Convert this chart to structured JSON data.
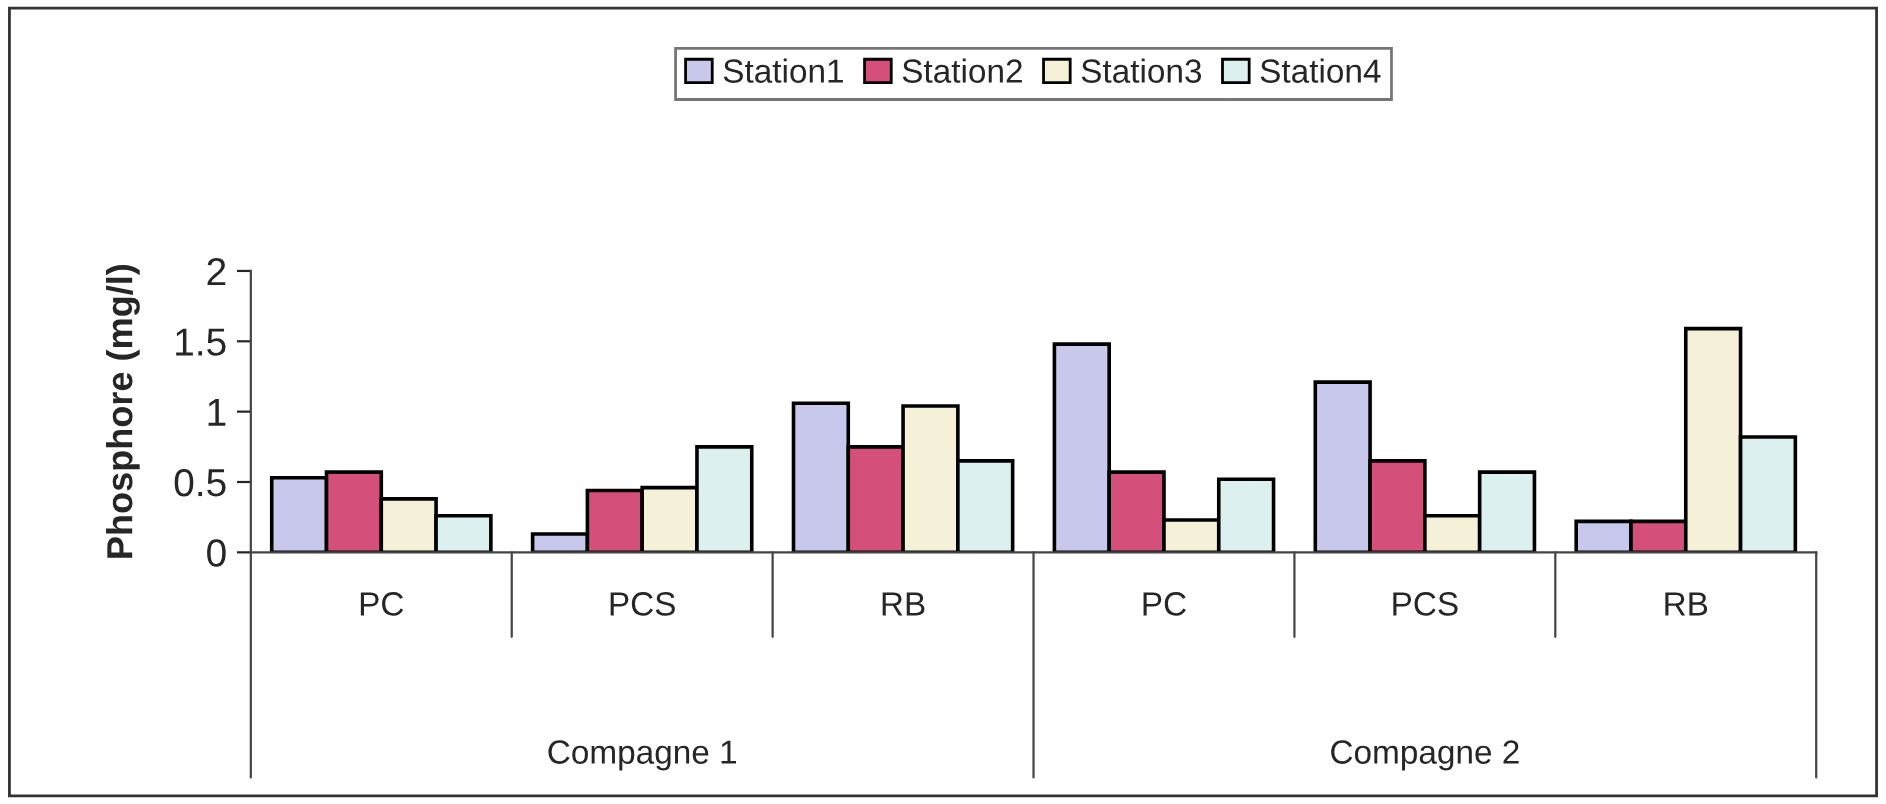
{
  "chart_data": {
    "type": "bar",
    "ylabel": "Phosphore (mg/l)",
    "categories": [
      "PC",
      "PCS",
      "RB",
      "PC",
      "PCS",
      "RB"
    ],
    "series": [
      {
        "name": "Station1",
        "color": "#c8c8ec",
        "values": [
          0.53,
          0.13,
          1.06,
          1.48,
          1.21,
          0.22
        ]
      },
      {
        "name": "Station2",
        "color": "#d4507a",
        "values": [
          0.57,
          0.44,
          0.75,
          0.57,
          0.65,
          0.22
        ]
      },
      {
        "name": "Station3",
        "color": "#f5f0d8",
        "values": [
          0.38,
          0.46,
          1.04,
          0.23,
          0.26,
          1.59
        ]
      },
      {
        "name": "Station4",
        "color": "#ddf0f0",
        "values": [
          0.26,
          0.75,
          0.65,
          0.52,
          0.57,
          0.82
        ]
      }
    ],
    "annotations": [
      "Compagne 1",
      "Compagne 2"
    ],
    "ylim": [
      0,
      2
    ],
    "yticks": [
      0,
      0.5,
      1,
      1.5,
      2
    ],
    "grid": false,
    "legend": "top"
  }
}
